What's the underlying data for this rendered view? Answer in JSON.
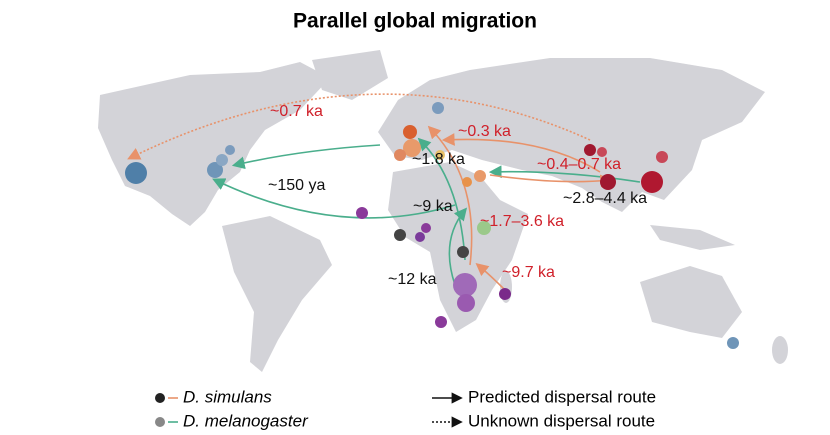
{
  "title": "Parallel global migration",
  "routes": [
    "~0.7 ka",
    "~0.3 ka",
    "~1.8 ka",
    "~150 ya",
    "~0.4–0.7 ka",
    "~2.8–4.4 ka",
    "~9 ka",
    "~1.7–3.6 ka",
    "~12 ka",
    "~9.7 ka"
  ],
  "legend": {
    "simulans": "D. simulans",
    "melanogaster": "D. melanogaster",
    "predicted": "Predicted dispersal route",
    "unknown": "Unknown dispersal route"
  }
}
